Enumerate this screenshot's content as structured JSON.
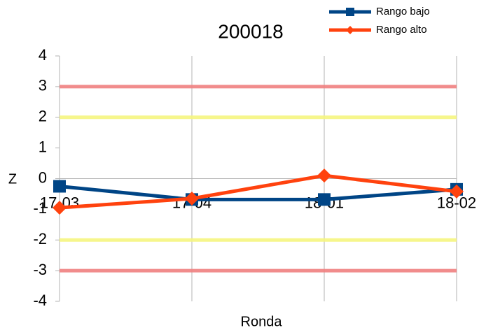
{
  "chart_data": {
    "type": "line",
    "title": "200018",
    "x_label": "Ronda",
    "y_label": "Z",
    "categories": [
      "17-03",
      "17-04",
      "18-01",
      "18-02"
    ],
    "series": [
      {
        "name": "Rango bajo",
        "color": "#004586",
        "marker": "square",
        "values": [
          -0.25,
          -0.68,
          -0.68,
          -0.35
        ]
      },
      {
        "name": "Rango alto",
        "color": "#ff420e",
        "marker": "diamond",
        "values": [
          -0.95,
          -0.65,
          0.1,
          -0.42
        ]
      }
    ],
    "reference_lines": [
      {
        "value": 3,
        "color": "#f08080"
      },
      {
        "value": 2,
        "color": "#f5f580"
      },
      {
        "value": -2,
        "color": "#f5f580"
      },
      {
        "value": -3,
        "color": "#f08080"
      }
    ],
    "ylim": [
      -4,
      4
    ],
    "yticks": [
      -4,
      -3,
      -2,
      -1,
      0,
      1,
      2,
      3,
      4
    ],
    "grid": true,
    "legend": "top-right"
  }
}
